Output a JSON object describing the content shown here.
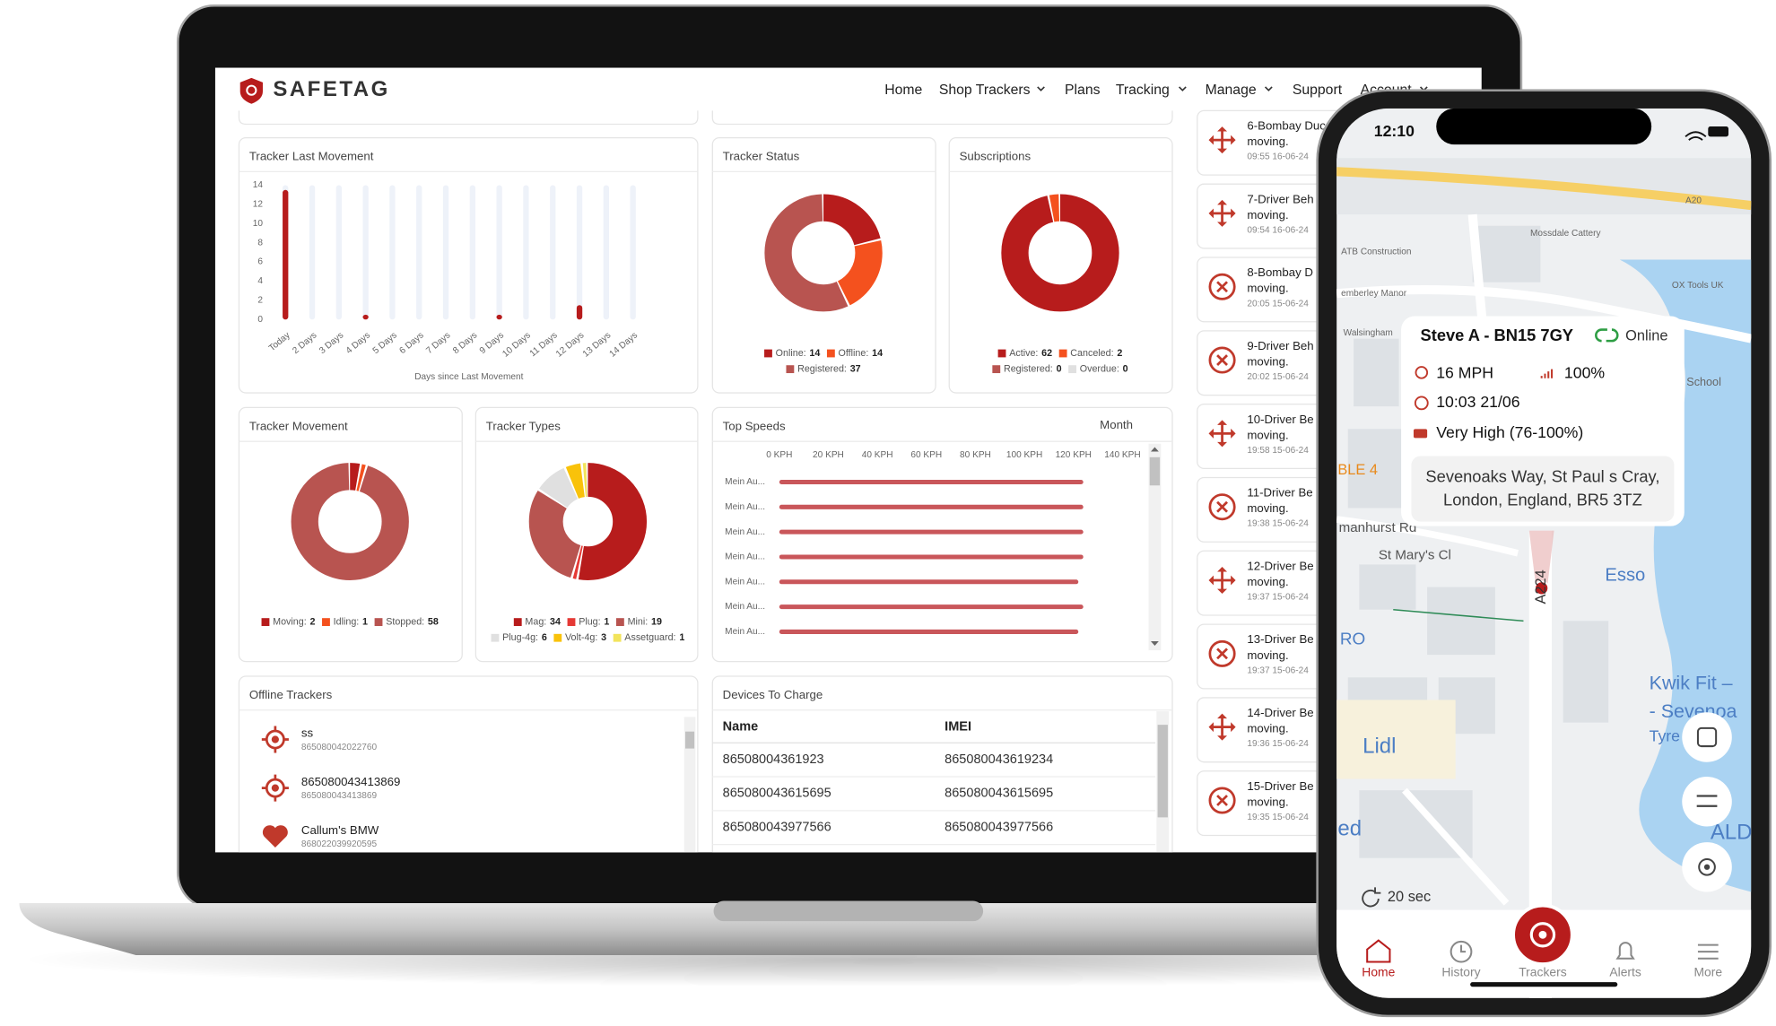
{
  "header": {
    "brand": "SAFETAG",
    "nav": [
      "Home",
      "Shop Trackers",
      "Plans",
      "Tracking",
      "Manage",
      "Support",
      "Account"
    ]
  },
  "chart_data": [
    {
      "type": "bar",
      "title": "Tracker Last Movement",
      "x_label": "Days since Last Movement",
      "categories": [
        "Today",
        "2 Days",
        "3 Days",
        "4 Days",
        "5 Days",
        "6 Days",
        "7 Days",
        "8 Days",
        "9 Days",
        "10 Days",
        "11 Days",
        "12 Days",
        "13 Days",
        "14 Days"
      ],
      "values": [
        13.5,
        0,
        0,
        0.5,
        0,
        0,
        0,
        0,
        0.5,
        0,
        0,
        1.5,
        0,
        0
      ],
      "color": "#b71c1c",
      "ylim": [
        0,
        14
      ],
      "yticks": [
        0,
        2,
        4,
        6,
        8,
        10,
        12,
        14
      ]
    },
    {
      "type": "donut",
      "title": "Tracker Status",
      "categories": [
        "Online:",
        "Offline:",
        "Registered:"
      ],
      "values": [
        14,
        14,
        37
      ],
      "colors": [
        "#b71c1c",
        "#f4511e",
        "#b85450"
      ]
    },
    {
      "type": "donut",
      "title": "Subscriptions",
      "categories": [
        "Active:",
        "Canceled:",
        "Registered:",
        "Overdue:"
      ],
      "values": [
        62,
        2,
        0,
        0
      ],
      "colors": [
        "#b71c1c",
        "#f4511e",
        "#b85450",
        "#e0e0e0"
      ]
    },
    {
      "type": "donut",
      "title": "Tracker Movement",
      "categories": [
        "Moving:",
        "Idling:",
        "Stopped:"
      ],
      "values": [
        2,
        1,
        58
      ],
      "colors": [
        "#b71c1c",
        "#f4511e",
        "#b85450"
      ]
    },
    {
      "type": "donut",
      "title": "Tracker Types",
      "categories": [
        "Mag:",
        "Plug:",
        "Mini:",
        "Plug-4g:",
        "Volt-4g:",
        "Assetguard:"
      ],
      "values": [
        34,
        1,
        19,
        6,
        3,
        1
      ],
      "colors": [
        "#b71c1c",
        "#e53935",
        "#b85450",
        "#e0e0e0",
        "#f9c20a",
        "#f2e45c"
      ]
    },
    {
      "type": "barh",
      "title": "Top Speeds",
      "period": "Month",
      "categories": [
        "Mein Au...",
        "Mein Au...",
        "Mein Au...",
        "Mein Au...",
        "Mein Au...",
        "Mein Au...",
        "Mein Au..."
      ],
      "values": [
        124,
        124,
        124,
        124,
        122,
        124,
        122
      ],
      "color": "#c9565a",
      "xlim": [
        0,
        140
      ],
      "xticks": [
        {
          "value": 0,
          "label": "0 KPH"
        },
        {
          "value": 20,
          "label": "20 KPH"
        },
        {
          "value": 40,
          "label": "40 KPH"
        },
        {
          "value": 60,
          "label": "60 KPH"
        },
        {
          "value": 80,
          "label": "80 KPH"
        },
        {
          "value": 100,
          "label": "100 KPH"
        },
        {
          "value": 120,
          "label": "120 KPH"
        },
        {
          "value": 140,
          "label": "140 KPH"
        }
      ]
    }
  ],
  "offline_trackers": {
    "title": "Offline Trackers",
    "items": [
      {
        "name": "ss",
        "imei": "865080042022760"
      },
      {
        "name": "865080043413869",
        "imei": "865080043413869"
      },
      {
        "name": "Callum's BMW",
        "imei": "868022039920595"
      }
    ]
  },
  "devices_to_charge": {
    "title": "Devices To Charge",
    "columns": [
      "Name",
      "IMEI"
    ],
    "rows": [
      [
        "86508004361923",
        "865080043619234"
      ],
      [
        "865080043615695",
        "865080043615695"
      ],
      [
        "865080043977566",
        "865080043977566"
      ]
    ]
  },
  "activity": [
    {
      "name": "6-Bombay Duc",
      "status": "moving.",
      "time": "09:55 16-06-24"
    },
    {
      "name": "7-Driver Beh",
      "status": "moving.",
      "time": "09:54 16-06-24"
    },
    {
      "name": "8-Bombay D",
      "status": "moving.",
      "time": "20:05 15-06-24"
    },
    {
      "name": "9-Driver Beh",
      "status": "moving.",
      "time": "20:02 15-06-24"
    },
    {
      "name": "10-Driver Be",
      "status": "moving.",
      "time": "19:58 15-06-24"
    },
    {
      "name": "11-Driver Be",
      "status": "moving.",
      "time": "19:38 15-06-24"
    },
    {
      "name": "12-Driver Be",
      "status": "moving.",
      "time": "19:37 15-06-24"
    },
    {
      "name": "13-Driver Be",
      "status": "moving.",
      "time": "19:37 15-06-24"
    },
    {
      "name": "14-Driver Be",
      "status": "moving.",
      "time": "19:36 15-06-24"
    },
    {
      "name": "15-Driver Be",
      "status": "moving.",
      "time": "19:35 15-06-24"
    }
  ],
  "phone": {
    "time": "12:10",
    "map_labels": [
      "Mossdale Cattery",
      "ATB Construction",
      "OX Tools UK",
      "School",
      "Walsingham",
      "emberley Manor",
      "St Mary's Cl",
      "Esso",
      "Kwik Fit –",
      "- Sevenoa",
      "Tyre",
      "Lidl",
      "RO",
      "BLE 4",
      "ed",
      "A224",
      "A20",
      "manhurst Rd",
      "ALD"
    ],
    "vehicle": "Steve A - BN15 7GY",
    "status": "Online",
    "speed": "16 MPH",
    "battery": "100%",
    "timestamp": "10:03 21/06",
    "signal": "Very High (76-100%)",
    "address": [
      "Sevenoaks Way, St Paul s Cray,",
      "London, England, BR5 3TZ"
    ],
    "refresh": "20 sec",
    "nav": [
      "Home",
      "History",
      "Trackers",
      "Alerts",
      "More"
    ]
  }
}
